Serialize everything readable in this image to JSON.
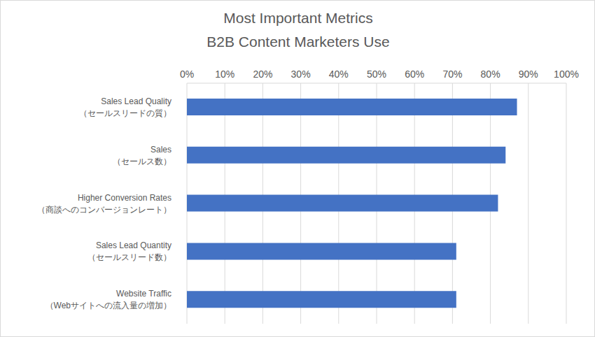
{
  "chart_data": {
    "type": "bar",
    "title": "Most Important Metrics\nB2B Content Marketers Use",
    "orientation": "horizontal",
    "categories": [
      "Sales Lead Quality\n（セールスリードの質）",
      "Sales\n（セールス数）",
      "Higher Conversion Rates\n（商談へのコンバージョンレート）",
      "Sales Lead Quantity\n（セールスリード数）",
      "Website Traffic\n（Webサイトへの流入量の増加）"
    ],
    "values": [
      87,
      84,
      82,
      71,
      71
    ],
    "color": "#4472c4",
    "xlim": [
      0,
      100
    ],
    "xticks": [
      {
        "value": 0,
        "label": "0%"
      },
      {
        "value": 10,
        "label": "10%"
      },
      {
        "value": 20,
        "label": "20%"
      },
      {
        "value": 30,
        "label": "30%"
      },
      {
        "value": 40,
        "label": "40%"
      },
      {
        "value": 50,
        "label": "50%"
      },
      {
        "value": 60,
        "label": "60%"
      },
      {
        "value": 70,
        "label": "70%"
      },
      {
        "value": 80,
        "label": "80%"
      },
      {
        "value": 90,
        "label": "90%"
      },
      {
        "value": 100,
        "label": "100%"
      }
    ],
    "grid": true
  }
}
